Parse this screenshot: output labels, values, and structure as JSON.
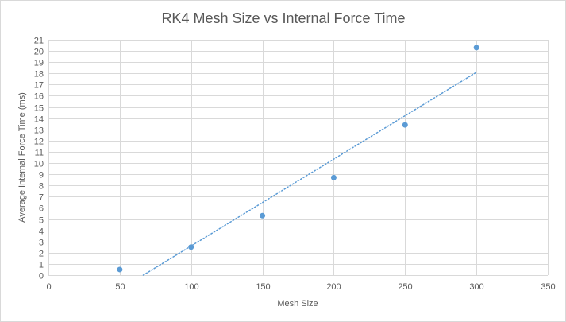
{
  "chart_data": {
    "type": "scatter",
    "title": "RK4 Mesh Size vs Internal Force Time",
    "xlabel": "Mesh Size",
    "ylabel": "Average Internal Force Time (ms)",
    "xlim": [
      0,
      350
    ],
    "ylim": [
      0,
      21
    ],
    "x_ticks": [
      "0",
      "50",
      "100",
      "150",
      "200",
      "250",
      "300",
      "350"
    ],
    "y_ticks": [
      "0",
      "1",
      "2",
      "3",
      "4",
      "5",
      "6",
      "7",
      "8",
      "9",
      "10",
      "11",
      "12",
      "13",
      "14",
      "15",
      "16",
      "17",
      "18",
      "19",
      "20",
      "21"
    ],
    "grid": true,
    "legend": "none",
    "series": [
      {
        "points": [
          {
            "x": 50,
            "y": 0.5
          },
          {
            "x": 100,
            "y": 2.5
          },
          {
            "x": 150,
            "y": 5.3
          },
          {
            "x": 200,
            "y": 8.7
          },
          {
            "x": 250,
            "y": 13.4
          },
          {
            "x": 300,
            "y": 20.3
          }
        ],
        "color": "#5b9bd5"
      }
    ],
    "trendline": {
      "type": "linear",
      "style": "dotted",
      "color": "#5b9bd5",
      "x_range": [
        66.5,
        300
      ],
      "y_range": [
        0,
        18.1
      ]
    },
    "colors": {
      "grid": "#d9d9d9",
      "text": "#595959"
    }
  }
}
